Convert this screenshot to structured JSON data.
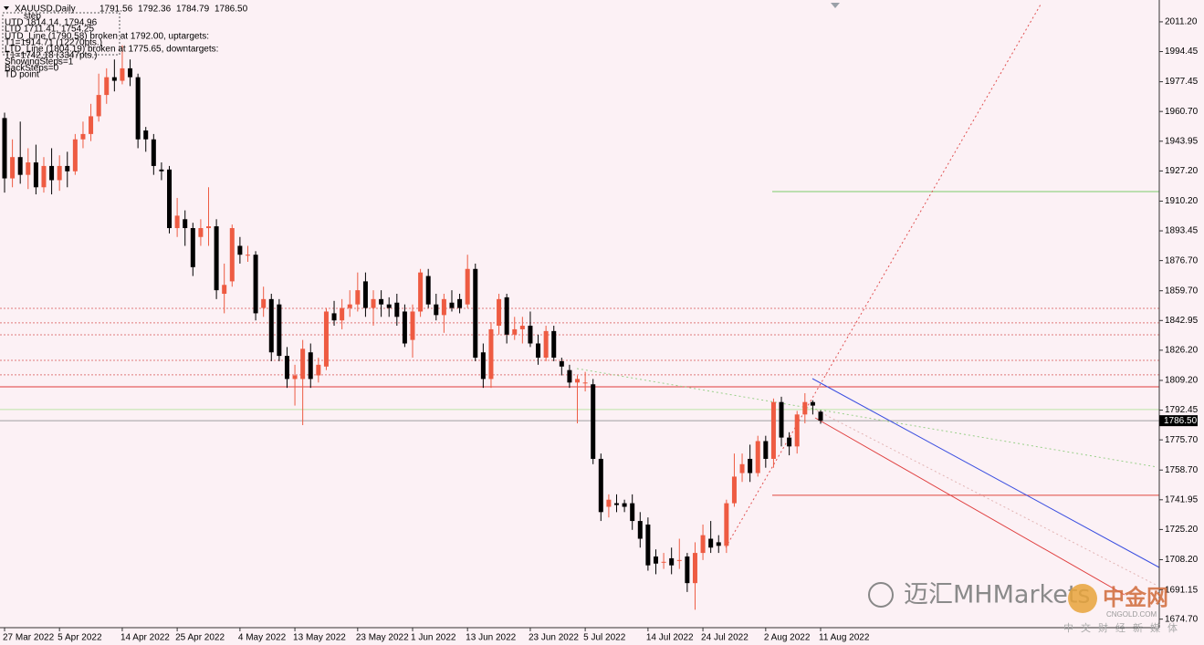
{
  "chart_data": {
    "type": "candlestick",
    "title": "XAUUSD,Daily",
    "header_values": [
      "1791.56",
      "1792.36",
      "1784.79",
      "1786.50"
    ],
    "categories": [
      "27 Mar 2022",
      null,
      null,
      null,
      null,
      null,
      null,
      "5 Apr 2022",
      null,
      null,
      null,
      null,
      null,
      null,
      null,
      "14 Apr 2022",
      null,
      null,
      null,
      null,
      null,
      null,
      "25 Apr 2022",
      null,
      null,
      null,
      null,
      null,
      null,
      null,
      "4 May 2022",
      null,
      null,
      null,
      null,
      null,
      null,
      "13 May 2022",
      null,
      null,
      null,
      null,
      null,
      null,
      null,
      "23 May 2022",
      null,
      null,
      null,
      null,
      null,
      null,
      "1 Jun 2022",
      null,
      null,
      null,
      null,
      null,
      null,
      "13 Jun 2022",
      null,
      null,
      null,
      null,
      null,
      null,
      null,
      "23 Jun 2022",
      null,
      null,
      null,
      null,
      null,
      null,
      "5 Jul 2022",
      null,
      null,
      null,
      null,
      null,
      null,
      null,
      "14 Jul 2022",
      null,
      null,
      null,
      null,
      null,
      null,
      "24 Jul 2022",
      null,
      null,
      null,
      null,
      null,
      null,
      null,
      "2 Aug 2022",
      null,
      null,
      null,
      null,
      null,
      null,
      "11 Aug 2022"
    ],
    "open": [
      1957,
      1923,
      1935,
      1925,
      1932,
      1918,
      1930,
      1922,
      1930,
      1927,
      1945,
      1948,
      1958,
      1970,
      1980,
      1978,
      1985,
      1980,
      1950,
      1945,
      1928,
      1928,
      1895,
      1900,
      1895,
      1890,
      1895,
      1896,
      1858,
      1865,
      1885,
      1880,
      1880,
      1850,
      1855,
      1852,
      1823,
      1810,
      1810,
      1825,
      1812,
      1817,
      1847,
      1843,
      1850,
      1852,
      1865,
      1850,
      1855,
      1852,
      1853,
      1848,
      1832,
      1848,
      1868,
      1852,
      1846,
      1853,
      1855,
      1852,
      1872,
      1825,
      1810,
      1840,
      1856,
      1835,
      1838,
      1840,
      1830,
      1822,
      1837,
      1820,
      1815,
      1808,
      1808,
      1807,
      1765,
      1738,
      1740,
      1740,
      1740,
      1730,
      1728,
      1710,
      1707,
      1709,
      1708,
      1710,
      1695,
      1712,
      1720,
      1718,
      1716,
      1740,
      1757,
      1765,
      1757,
      1775,
      1765,
      1797,
      1777,
      1772,
      1790,
      1797,
      1791.56
    ],
    "high": [
      1960,
      1945,
      1955,
      1940,
      1942,
      1935,
      1940,
      1936,
      1938,
      1948,
      1955,
      1965,
      1982,
      1985,
      1990,
      1998,
      1990,
      1982,
      1952,
      1948,
      1932,
      1930,
      1912,
      1905,
      1898,
      1900,
      1918,
      1900,
      1875,
      1897,
      1890,
      1885,
      1882,
      1862,
      1858,
      1855,
      1828,
      1818,
      1832,
      1830,
      1822,
      1850,
      1854,
      1855,
      1860,
      1870,
      1870,
      1860,
      1860,
      1856,
      1858,
      1852,
      1852,
      1872,
      1872,
      1858,
      1858,
      1860,
      1858,
      1880,
      1875,
      1830,
      1842,
      1858,
      1858,
      1845,
      1845,
      1848,
      1835,
      1840,
      1840,
      1822,
      1818,
      1812,
      1814,
      1810,
      1768,
      1745,
      1745,
      1742,
      1745,
      1735,
      1732,
      1714,
      1712,
      1715,
      1720,
      1712,
      1718,
      1728,
      1730,
      1722,
      1742,
      1768,
      1768,
      1773,
      1778,
      1778,
      1799,
      1800,
      1780,
      1792,
      1802,
      1798,
      1792.36
    ],
    "low": [
      1915,
      1918,
      1920,
      1917,
      1914,
      1915,
      1914,
      1916,
      1918,
      1925,
      1940,
      1944,
      1955,
      1965,
      1972,
      1976,
      1975,
      1940,
      1938,
      1925,
      1922,
      1892,
      1890,
      1885,
      1868,
      1885,
      1885,
      1855,
      1847,
      1862,
      1875,
      1876,
      1843,
      1845,
      1820,
      1820,
      1805,
      1795,
      1784,
      1805,
      1808,
      1815,
      1840,
      1838,
      1845,
      1848,
      1845,
      1840,
      1845,
      1845,
      1840,
      1828,
      1822,
      1845,
      1850,
      1843,
      1836,
      1848,
      1847,
      1850,
      1820,
      1805,
      1805,
      1835,
      1830,
      1832,
      1830,
      1828,
      1818,
      1820,
      1820,
      1812,
      1805,
      1785,
      1803,
      1762,
      1730,
      1732,
      1735,
      1735,
      1725,
      1715,
      1702,
      1700,
      1703,
      1700,
      1703,
      1690,
      1680,
      1708,
      1712,
      1712,
      1712,
      1738,
      1752,
      1752,
      1755,
      1760,
      1760,
      1772,
      1767,
      1768,
      1785,
      1790,
      1784.79
    ],
    "close": [
      1923,
      1935,
      1925,
      1932,
      1918,
      1930,
      1922,
      1930,
      1927,
      1945,
      1948,
      1958,
      1970,
      1980,
      1978,
      1985,
      1980,
      1945,
      1945,
      1930,
      1927,
      1895,
      1902,
      1895,
      1873,
      1895,
      1896,
      1860,
      1863,
      1895,
      1880,
      1880,
      1847,
      1855,
      1825,
      1823,
      1810,
      1812,
      1827,
      1810,
      1818,
      1848,
      1843,
      1850,
      1852,
      1860,
      1850,
      1855,
      1852,
      1850,
      1845,
      1830,
      1848,
      1870,
      1852,
      1846,
      1855,
      1850,
      1850,
      1872,
      1822,
      1810,
      1838,
      1855,
      1835,
      1838,
      1840,
      1830,
      1822,
      1837,
      1822,
      1817,
      1808,
      1810,
      1808,
      1765,
      1735,
      1742,
      1739,
      1738,
      1730,
      1720,
      1705,
      1706,
      1707,
      1705,
      1708,
      1695,
      1712,
      1722,
      1715,
      1716,
      1740,
      1755,
      1762,
      1757,
      1775,
      1765,
      1797,
      1777,
      1772,
      1790,
      1797,
      1795,
      1786.5
    ],
    "up_color": "#ee5b42",
    "down_color": "#000000",
    "ylim": [
      1669.9,
      2023.5
    ],
    "yticks": [
      {
        "value": 2011.2,
        "label": "2011.20"
      },
      1994.45,
      1977.45,
      {
        "value": 1960.7,
        "label": "1960.70"
      },
      1943.95,
      {
        "value": 1927.2,
        "label": "1927.20"
      },
      {
        "value": 1910.2,
        "label": "1910.20"
      },
      1893.45,
      {
        "value": 1876.7,
        "label": "1876.70"
      },
      {
        "value": 1859.7,
        "label": "1859.70"
      },
      1842.95,
      {
        "value": 1826.2,
        "label": "1826.20"
      },
      {
        "value": 1809.2,
        "label": "1809.20"
      },
      1792.45,
      {
        "value": 1775.7,
        "label": "1775.70"
      },
      {
        "value": 1758.7,
        "label": "1758.70"
      },
      1741.95,
      {
        "value": 1725.2,
        "label": "1725.20"
      },
      {
        "value": 1708.2,
        "label": "1708.20"
      },
      1691.15,
      {
        "value": 1674.7,
        "label": "1674.70"
      }
    ],
    "grid": false,
    "levels": [
      {
        "value": 1915.6,
        "color": "#7ccb6c",
        "style": "solid",
        "partial": true
      },
      {
        "value": 1744.5,
        "color": "#e0463c",
        "style": "solid",
        "partial": true
      },
      {
        "value": 1849.8,
        "color": "#e07a7a",
        "style": "dotted",
        "partial": false
      },
      {
        "value": 1841.6,
        "color": "#e07a7a",
        "style": "dotted",
        "partial": false
      },
      {
        "value": 1834.9,
        "color": "#e07a7a",
        "style": "dotted",
        "partial": false
      },
      {
        "value": 1820.5,
        "color": "#e07a7a",
        "style": "dotted",
        "partial": false
      },
      {
        "value": 1812.3,
        "color": "#e07a7a",
        "style": "dotted",
        "partial": false
      },
      {
        "value": 1805.6,
        "color": "#e03a3a",
        "style": "solid",
        "partial": false
      },
      {
        "value": 1792.8,
        "color": "#bde3a8",
        "style": "solid",
        "partial": false
      }
    ]
  },
  "overlay": {
    "lines": [
      "step",
      "UTD 1814.14, 1794.96",
      "LTD 1711.41, 1754.25",
      "UTD_Line (1790.58) broken at 1792.00, uptargets:",
      "T1=1914.71 (12270pts.)",
      "LTD_Line (1804.19) broken at 1775.65, downtargets:",
      "T1=1742.18 (3347pts.)",
      "ShowingSteps=1",
      "BackSteps=0",
      "TD point"
    ]
  },
  "watermark": {
    "brand": "迈汇MHMarkets",
    "site": "中金网",
    "domain": "CNGOLD.COM",
    "slogan": "中文财经新媒体"
  }
}
